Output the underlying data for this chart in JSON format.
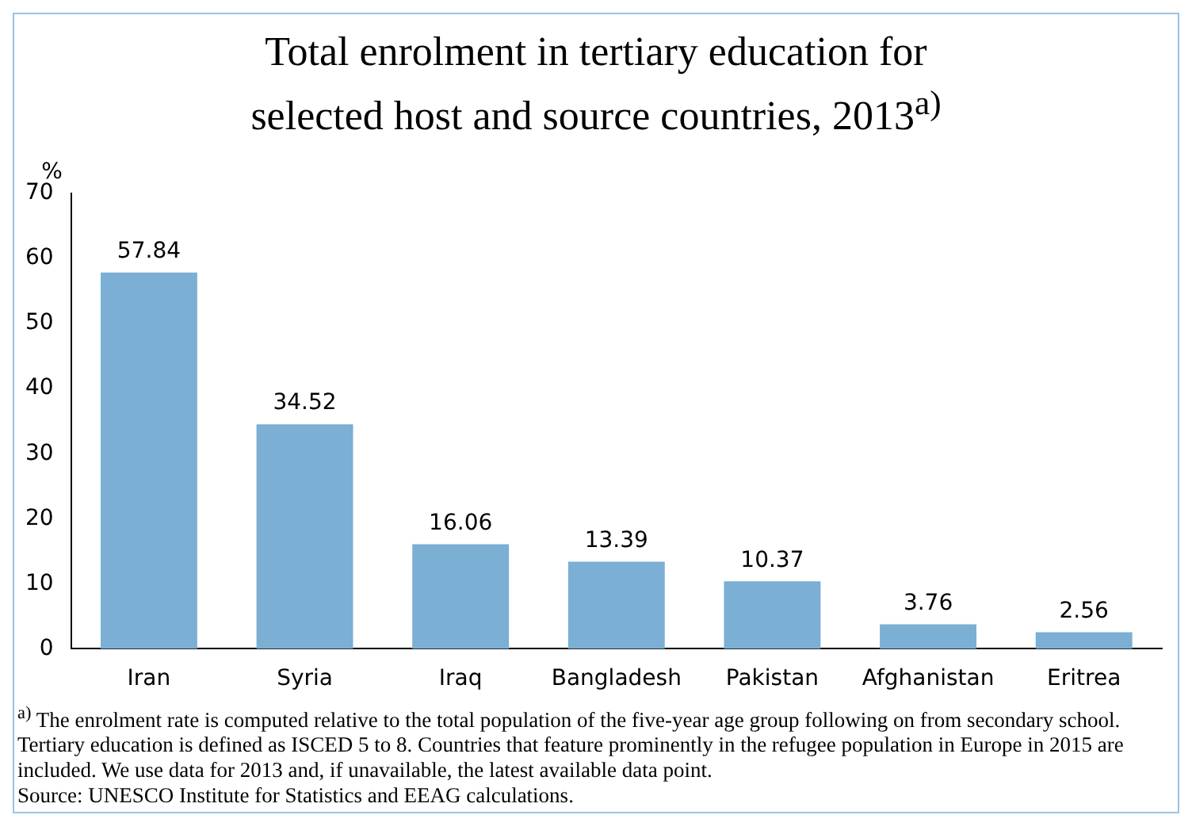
{
  "chart_data": {
    "type": "bar",
    "title": "Total enrolment in tertiary education for selected host and source countries, 2013$^{a)}$",
    "ylabel": "%",
    "categories": [
      "Iran",
      "Syria",
      "Iraq",
      "Bangladesh",
      "Pakistan",
      "Afghanistan",
      "Eritrea"
    ],
    "values": [
      57.84,
      34.52,
      16.06,
      13.39,
      10.37,
      3.76,
      2.56
    ],
    "color": "#7bafd4",
    "ylim": [
      0,
      70
    ],
    "yticks": [
      0,
      10,
      20,
      30,
      40,
      50,
      60,
      70
    ],
    "grid": false,
    "data_labels": true,
    "annotations": [
      "$^{a)}$ The enrolment rate is computed relative to the total population of the five-year age group following on from secondary school. Tertiary education is defined as ISCED 5 to 8. Countries that feature prominently in the refugee population in Europe in 2015 are included. We use data for 2013 and, if unavailable, the latest available data point.",
      "Source: UNESCO Institute for Statistics and EEAG calculations."
    ]
  }
}
